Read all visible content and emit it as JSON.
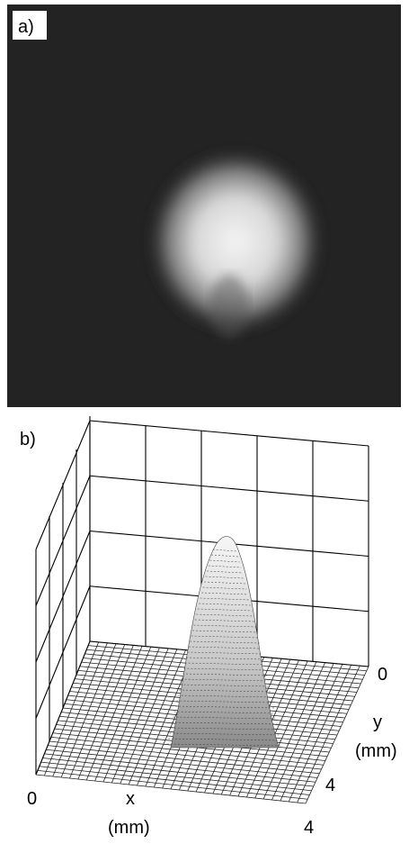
{
  "panel_a": {
    "label": "a)"
  },
  "panel_b": {
    "label": "b)",
    "x_axis": {
      "start": "0",
      "end": "4",
      "name": "x",
      "unit": "(mm)"
    },
    "y_axis": {
      "start": "0",
      "end": "4",
      "name": "y",
      "unit": "(mm)"
    }
  }
}
